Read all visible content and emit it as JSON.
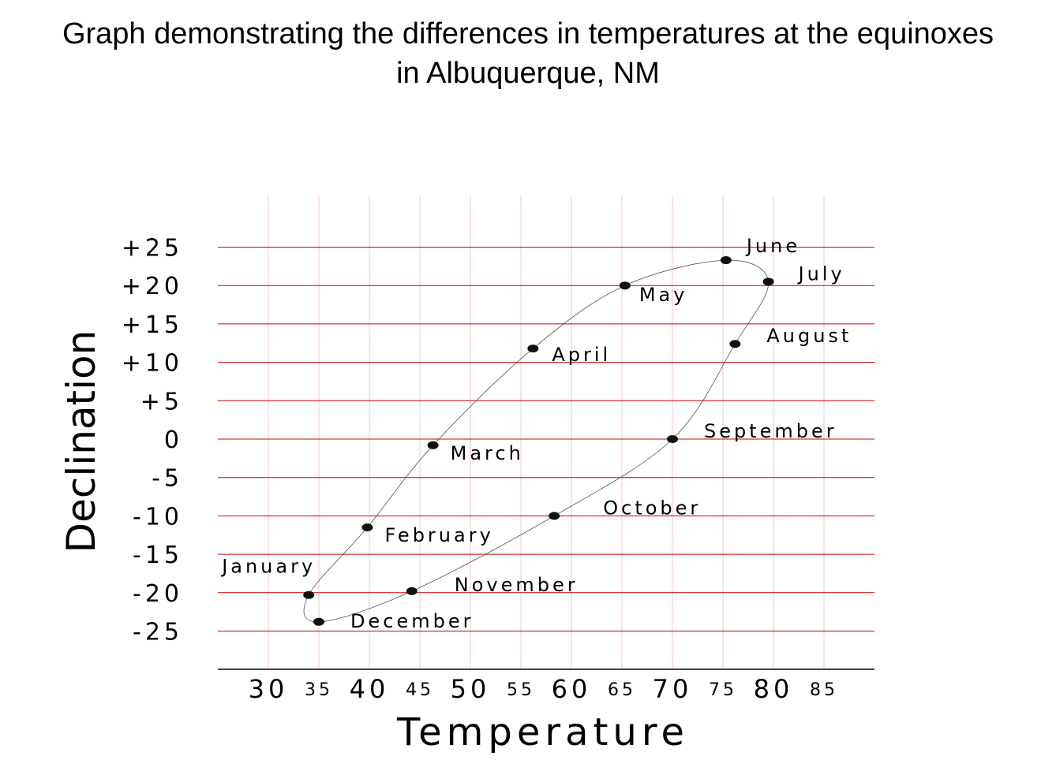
{
  "title": "Graph demonstrating the differences in temperatures at the equinoxes\nin Albuquerque, NM",
  "chart_data": {
    "type": "line",
    "title": "Graph demonstrating the differences in temperatures at the equinoxes in Albuquerque, NM",
    "xlabel": "Temperature",
    "ylabel": "Declination",
    "xlim": [
      25,
      90
    ],
    "ylim": [
      -30,
      32
    ],
    "grid": true,
    "closed_curve": true,
    "x_ticks_major": [
      "30",
      "40",
      "50",
      "60",
      "70",
      "80"
    ],
    "x_ticks_minor": [
      "35",
      "45",
      "55",
      "65",
      "75",
      "85"
    ],
    "y_ticks": [
      "+25",
      "+20",
      "+15",
      "+10",
      "+5",
      "0",
      "-5",
      "-10",
      "-15",
      "-20",
      "-25"
    ],
    "y_tick_values": [
      25,
      20,
      15,
      10,
      5,
      0,
      -5,
      -10,
      -15,
      -20,
      -25
    ],
    "x_grid_values": [
      30,
      35,
      40,
      45,
      50,
      55,
      60,
      65,
      70,
      75,
      80,
      85
    ],
    "points": [
      {
        "label": "January",
        "x": 34,
        "y": -20.3
      },
      {
        "label": "February",
        "x": 39.8,
        "y": -11.5
      },
      {
        "label": "March",
        "x": 46.3,
        "y": -0.8
      },
      {
        "label": "April",
        "x": 56.2,
        "y": 11.8
      },
      {
        "label": "May",
        "x": 65.3,
        "y": 20
      },
      {
        "label": "June",
        "x": 75.3,
        "y": 23.3
      },
      {
        "label": "July",
        "x": 79.5,
        "y": 20.5
      },
      {
        "label": "August",
        "x": 76.2,
        "y": 12.4
      },
      {
        "label": "September",
        "x": 70,
        "y": 0
      },
      {
        "label": "October",
        "x": 58.3,
        "y": -10
      },
      {
        "label": "November",
        "x": 44.2,
        "y": -19.8
      },
      {
        "label": "December",
        "x": 35,
        "y": -23.8
      }
    ]
  },
  "colors": {
    "horizontal_grid": "#cc0000",
    "vertical_grid": "#f2c8c8",
    "curve": "#555555",
    "marker": "#111111",
    "text": "#000000"
  }
}
